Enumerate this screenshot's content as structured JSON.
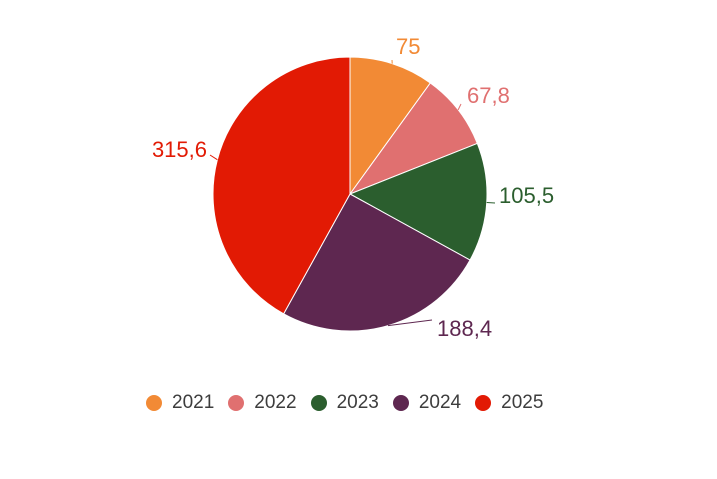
{
  "chart_data": {
    "type": "pie",
    "categories": [
      "2021",
      "2022",
      "2023",
      "2024",
      "2025"
    ],
    "values": [
      75,
      67.8,
      105.5,
      188.4,
      315.6
    ],
    "value_labels": [
      "75",
      "67,8",
      "105,5",
      "188,4",
      "315,6"
    ],
    "colors": [
      "#f28a35",
      "#e07070",
      "#2b5e2e",
      "#5e2750",
      "#e21a04"
    ],
    "start_angle_deg": 0,
    "direction": "clockwise",
    "legend_placement": "bottom"
  }
}
